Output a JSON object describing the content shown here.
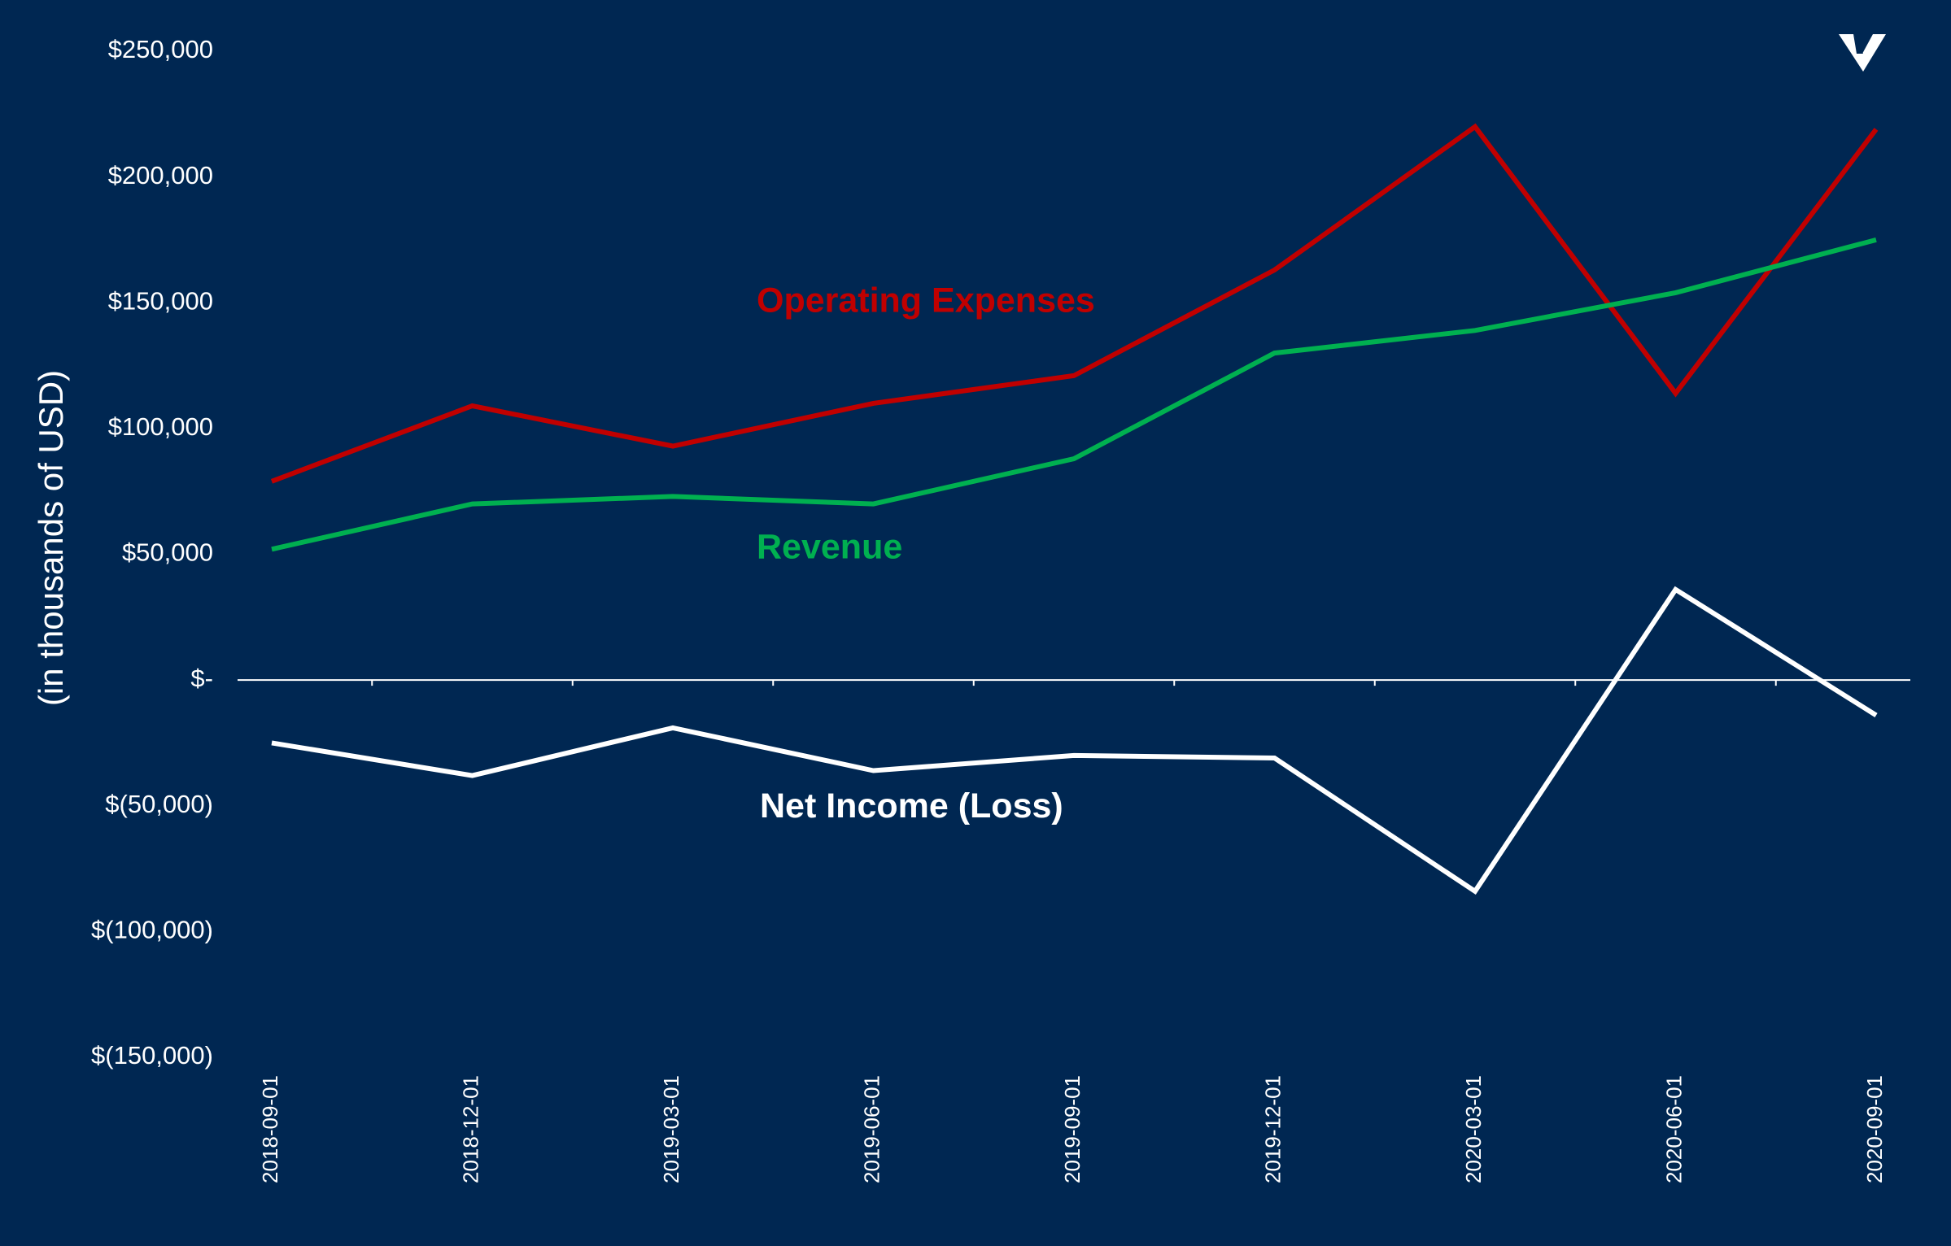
{
  "chart_data": {
    "type": "line",
    "title": "",
    "xlabel": "",
    "ylabel": "(in thousands of USD)",
    "categories": [
      "2018-09-01",
      "2018-12-01",
      "2019-03-01",
      "2019-06-01",
      "2019-09-01",
      "2019-12-01",
      "2020-03-01",
      "2020-06-01",
      "2020-09-01"
    ],
    "ylim": [
      -150000,
      250000
    ],
    "y_ticks": [
      250000,
      200000,
      150000,
      100000,
      50000,
      0,
      -50000,
      -100000,
      -150000
    ],
    "y_tick_labels": [
      "$250,000",
      "$200,000",
      "$150,000",
      "$100,000",
      "$50,000",
      "$-",
      "$(50,000)",
      "$(100,000)",
      "$(150,000)"
    ],
    "grid": false,
    "legend": "inline labels",
    "series": [
      {
        "name": "Operating Expenses",
        "color": "#C00000",
        "values": [
          79000,
          109000,
          93000,
          110000,
          121000,
          163000,
          220000,
          114000,
          219000
        ]
      },
      {
        "name": "Revenue",
        "color": "#00B050",
        "values": [
          52000,
          70000,
          73000,
          70000,
          88000,
          130000,
          139000,
          154000,
          175000
        ]
      },
      {
        "name": "Net Income (Loss)",
        "color": "#FFFFFF",
        "values": [
          -25000,
          -38000,
          -19000,
          -36000,
          -30000,
          -31000,
          -84000,
          36000,
          -14000
        ]
      }
    ]
  },
  "colors": {
    "background": "#002752",
    "axis": "#FFFFFF",
    "text": "#FFFFFF"
  },
  "logo": {
    "icon": "brand-logo-icon"
  }
}
